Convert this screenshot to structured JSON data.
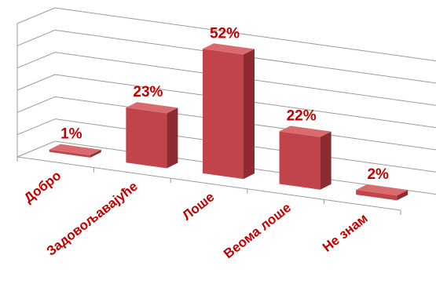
{
  "chart_data": {
    "type": "bar",
    "categories": [
      "Добро",
      "Задовољавајуће",
      "Лоше",
      "Веома лоше",
      "Не знам"
    ],
    "values": [
      1,
      23,
      52,
      22,
      2
    ],
    "value_labels": [
      "1%",
      "23%",
      "52%",
      "22%",
      "2%"
    ],
    "ylim": [
      0,
      60
    ],
    "grid": true,
    "legend": "none",
    "style": "3d-column",
    "colors": {
      "bar_front": "#c0444a",
      "bar_side": "#8e2b30",
      "bar_top": "#d96a6e",
      "label": "#c00000",
      "grid": "#9a9a9a"
    }
  }
}
